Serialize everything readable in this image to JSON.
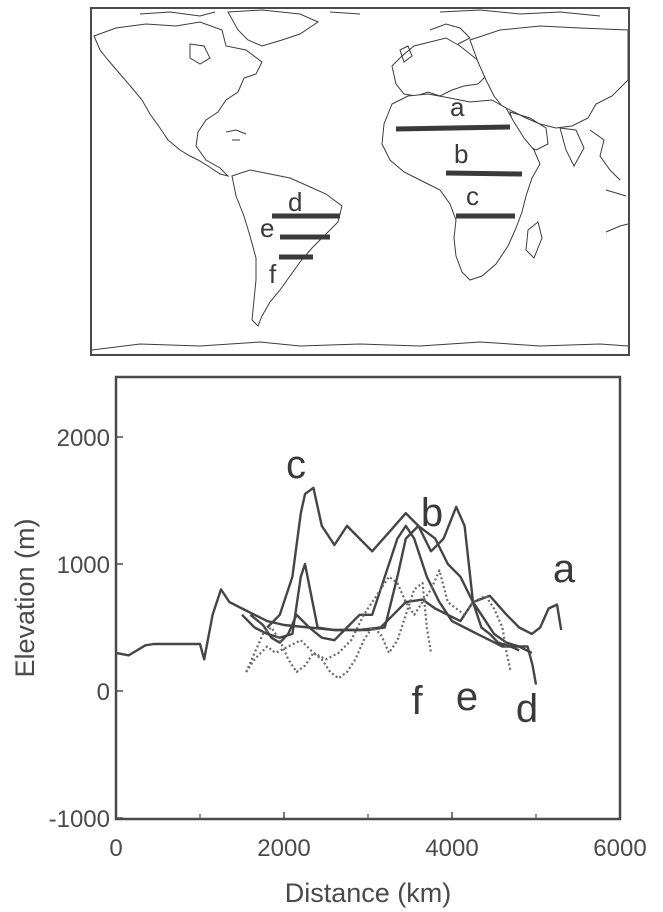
{
  "map": {
    "transects": [
      {
        "id": "a",
        "label": "a"
      },
      {
        "id": "b",
        "label": "b"
      },
      {
        "id": "c",
        "label": "c"
      },
      {
        "id": "d",
        "label": "d"
      },
      {
        "id": "e",
        "label": "e"
      },
      {
        "id": "f",
        "label": "f"
      }
    ]
  },
  "chart_data": {
    "type": "line",
    "title": "",
    "xlabel": "Distance (km)",
    "ylabel": "Elevation (m)",
    "xlim": [
      0,
      6000
    ],
    "ylim": [
      -1000,
      2500
    ],
    "xticks": [
      0,
      2000,
      4000,
      6000
    ],
    "yticks": [
      -1000,
      0,
      1000,
      2000
    ],
    "grid": false,
    "series": [
      {
        "name": "a",
        "style": "solid",
        "x": [
          0,
          150,
          250,
          350,
          450,
          600,
          800,
          1000,
          1050,
          1150,
          1250,
          1350,
          1500,
          1650,
          1800,
          2000,
          2300,
          2600,
          2900,
          3150,
          3300,
          3450,
          3650,
          3800,
          3950,
          4100,
          4250,
          4450,
          4650,
          4800,
          4950,
          5050,
          5150,
          5250,
          5300
        ],
        "y": [
          300,
          280,
          320,
          360,
          370,
          370,
          370,
          370,
          250,
          600,
          800,
          700,
          650,
          600,
          550,
          520,
          500,
          480,
          480,
          500,
          600,
          700,
          720,
          650,
          600,
          550,
          700,
          750,
          600,
          500,
          450,
          500,
          650,
          680,
          480
        ]
      },
      {
        "name": "b",
        "style": "solid",
        "x": [
          1500,
          1650,
          1800,
          1950,
          2100,
          2200,
          2250,
          2400,
          2600,
          2800,
          3000,
          3200,
          3350,
          3450,
          3600,
          3700,
          3800,
          3950,
          4100,
          4250,
          4400,
          4500,
          4650,
          4800,
          4950
        ],
        "y": [
          600,
          500,
          450,
          420,
          450,
          900,
          1000,
          500,
          480,
          480,
          480,
          500,
          900,
          1200,
          1300,
          1250,
          1200,
          1000,
          900,
          700,
          550,
          450,
          380,
          350,
          300
        ]
      },
      {
        "name": "c",
        "style": "solid",
        "x": [
          1800,
          1950,
          2100,
          2200,
          2250,
          2350,
          2450,
          2600,
          2750,
          2900,
          3050,
          3250,
          3450,
          3600,
          3750,
          3900,
          4050,
          4150,
          4250,
          4350,
          4450,
          4550,
          4700,
          4800
        ],
        "y": [
          500,
          600,
          900,
          1400,
          1550,
          1600,
          1300,
          1150,
          1300,
          1200,
          1100,
          1250,
          1400,
          1300,
          1100,
          1200,
          1450,
          1300,
          700,
          500,
          450,
          380,
          350,
          320
        ]
      },
      {
        "name": "d",
        "style": "solid",
        "x": [
          1600,
          1750,
          1850,
          1950,
          2050,
          2150,
          2300,
          2450,
          2600,
          2750,
          2900,
          3050,
          3150,
          3250,
          3350,
          3450,
          3550,
          3700,
          3850,
          4000,
          4150,
          4300,
          4450,
          4600,
          4750,
          4900,
          4960,
          5000
        ],
        "y": [
          600,
          520,
          420,
          380,
          450,
          600,
          500,
          420,
          400,
          500,
          600,
          600,
          800,
          1000,
          1200,
          1300,
          1200,
          900,
          700,
          550,
          500,
          450,
          400,
          350,
          350,
          350,
          200,
          50
        ]
      },
      {
        "name": "e",
        "style": "dotted",
        "x": [
          1550,
          1650,
          1800,
          1900,
          2050,
          2200,
          2350,
          2500,
          2650,
          2800,
          2950,
          3050,
          3150,
          3250,
          3350,
          3450,
          3550,
          3650,
          3750,
          3850,
          3950,
          4050,
          4150,
          4250,
          4400,
          4500,
          4600,
          4650,
          4700
        ],
        "y": [
          150,
          250,
          350,
          300,
          350,
          400,
          300,
          250,
          300,
          400,
          600,
          700,
          800,
          900,
          850,
          700,
          600,
          700,
          800,
          950,
          700,
          650,
          600,
          700,
          750,
          650,
          500,
          300,
          150
        ]
      },
      {
        "name": "f",
        "style": "dotted",
        "x": [
          1550,
          1650,
          1750,
          1850,
          1950,
          2050,
          2150,
          2250,
          2350,
          2450,
          2550,
          2650,
          2750,
          2850,
          2950,
          3050,
          3150,
          3250,
          3350,
          3450,
          3550,
          3650,
          3700,
          3750
        ],
        "y": [
          150,
          300,
          450,
          500,
          400,
          250,
          150,
          200,
          300,
          250,
          150,
          100,
          150,
          250,
          400,
          500,
          450,
          300,
          400,
          600,
          800,
          850,
          500,
          300
        ]
      }
    ],
    "annotations": [
      {
        "text": "c"
      },
      {
        "text": "b"
      },
      {
        "text": "a"
      },
      {
        "text": "f"
      },
      {
        "text": "e"
      },
      {
        "text": "d"
      }
    ]
  }
}
